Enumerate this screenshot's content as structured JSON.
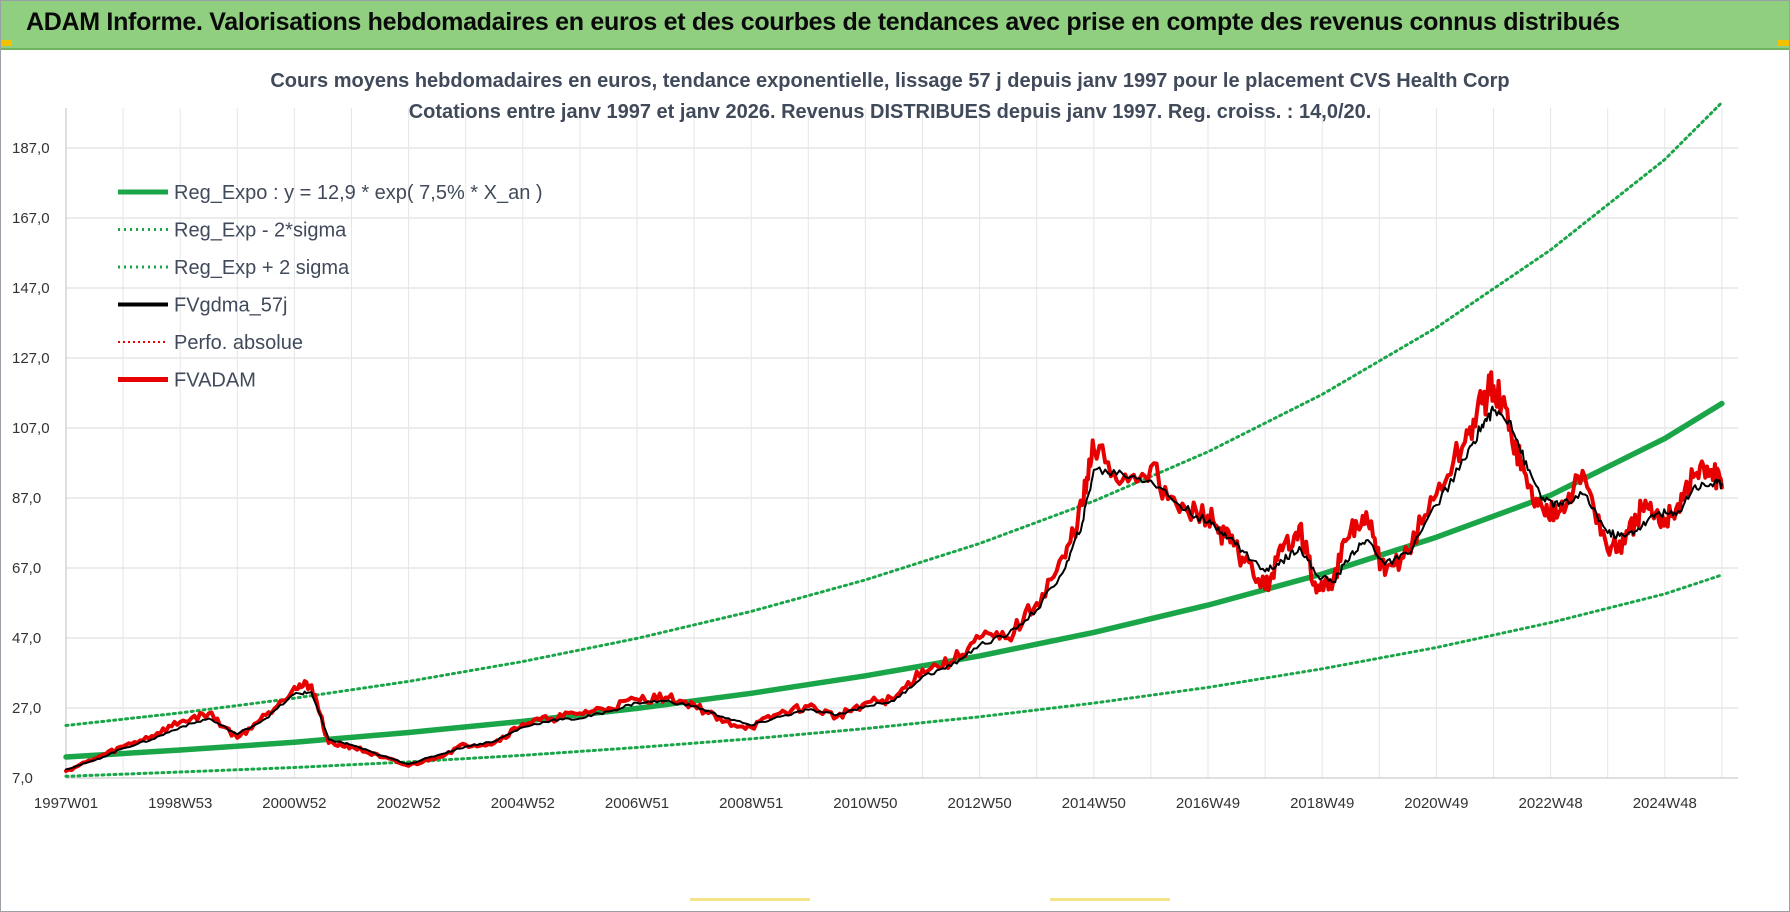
{
  "header": {
    "title": "ADAM Informe. Valorisations hebdomadaires en euros et des courbes de tendances avec prise en compte des revenus connus distribués"
  },
  "colors": {
    "header_bg": "#8fcf7f",
    "trend_green": "#1aa548",
    "price_red": "#e60000",
    "moving_avg_black": "#000000",
    "grid": "#d9d9d9"
  },
  "chart_data": {
    "type": "line",
    "title": "Cours moyens hebdomadaires en euros, tendance exponentielle, lissage 57 j depuis janv 1997 pour le placement CVS Health Corp",
    "subtitle": "Cotations entre janv 1997 et janv 2026. Revenus DISTRIBUES depuis janv 1997. Reg. croiss. : 14,0/20.",
    "xlabel": "",
    "ylabel": "",
    "x_range": [
      1997.0,
      2026.0
    ],
    "ylim": [
      7.0,
      187.0
    ],
    "y_ticks": [
      "7,0",
      "27,0",
      "47,0",
      "67,0",
      "87,0",
      "107,0",
      "127,0",
      "147,0",
      "167,0",
      "187,0"
    ],
    "x_ticks": [
      "1997W01",
      "1998W53",
      "2000W52",
      "2002W52",
      "2004W52",
      "2006W51",
      "2008W51",
      "2010W50",
      "2012W50",
      "2014W50",
      "2016W49",
      "2018W49",
      "2020W49",
      "2022W48",
      "2024W48"
    ],
    "x_tick_years": [
      1997.0,
      1999.0,
      2001.0,
      2003.0,
      2005.0,
      2007.0,
      2009.0,
      2011.0,
      2013.0,
      2015.0,
      2017.0,
      2019.0,
      2021.0,
      2023.0,
      2025.0
    ],
    "grid": true,
    "legend_position": "top-left",
    "legend": [
      {
        "name": "Reg_Expo : y = 12,9 * exp( 7,5% *  X_an )",
        "color": "#1aa548",
        "style": "solid-thick"
      },
      {
        "name": "Reg_Exp - 2*sigma",
        "color": "#1aa548",
        "style": "dotted"
      },
      {
        "name": "Reg_Exp + 2 sigma",
        "color": "#1aa548",
        "style": "dotted"
      },
      {
        "name": "FVgdma_57j",
        "color": "#000000",
        "style": "solid"
      },
      {
        "name": "Perfo. absolue",
        "color": "#e60000",
        "style": "dotted"
      },
      {
        "name": "FVADAM",
        "color": "#e60000",
        "style": "solid-thick"
      }
    ],
    "series": [
      {
        "name": "Reg_Expo : y = 12,9 * exp( 7,5% *  X_an )",
        "x": [
          1997,
          1999,
          2001,
          2003,
          2005,
          2007,
          2009,
          2011,
          2013,
          2015,
          2017,
          2019,
          2021,
          2023,
          2025,
          2026
        ],
        "values": [
          13.0,
          15.0,
          17.2,
          20.0,
          23.2,
          26.9,
          31.2,
          36.2,
          41.9,
          48.6,
          56.4,
          65.3,
          75.8,
          87.8,
          104.0,
          114.0
        ]
      },
      {
        "name": "Reg_Exp - 2*sigma",
        "x": [
          1997,
          1999,
          2001,
          2003,
          2005,
          2007,
          2009,
          2011,
          2013,
          2015,
          2017,
          2019,
          2021,
          2023,
          2025,
          2026
        ],
        "values": [
          7.5,
          8.7,
          10.0,
          11.6,
          13.5,
          15.7,
          18.2,
          21.1,
          24.5,
          28.4,
          32.9,
          38.2,
          44.3,
          51.4,
          59.6,
          65.0
        ]
      },
      {
        "name": "Reg_Exp + 2 sigma",
        "x": [
          1997,
          1999,
          2001,
          2003,
          2005,
          2007,
          2009,
          2011,
          2013,
          2015,
          2017,
          2019,
          2021,
          2023,
          2025,
          2026
        ],
        "values": [
          22.0,
          25.6,
          29.8,
          34.6,
          40.3,
          46.9,
          54.6,
          63.6,
          74.0,
          86.1,
          100.2,
          116.6,
          135.7,
          157.9,
          183.7,
          200.0
        ]
      },
      {
        "name": "FVgdma_57j",
        "x": [
          1997.0,
          1997.5,
          1998.0,
          1998.5,
          1999.0,
          1999.5,
          2000.0,
          2000.5,
          2001.0,
          2001.3,
          2001.6,
          2002.0,
          2002.5,
          2003.0,
          2003.5,
          2004.0,
          2004.5,
          2005.0,
          2005.5,
          2006.0,
          2006.5,
          2007.0,
          2007.5,
          2008.0,
          2008.5,
          2009.0,
          2009.5,
          2010.0,
          2010.5,
          2011.0,
          2011.5,
          2012.0,
          2012.5,
          2013.0,
          2013.5,
          2014.0,
          2014.5,
          2014.8,
          2015.0,
          2015.5,
          2016.0,
          2016.5,
          2017.0,
          2017.3,
          2017.6,
          2018.0,
          2018.3,
          2018.6,
          2018.9,
          2019.2,
          2019.5,
          2019.8,
          2020.1,
          2020.5,
          2021.0,
          2021.5,
          2021.8,
          2022.0,
          2022.3,
          2022.6,
          2022.9,
          2023.2,
          2023.6,
          2024.0,
          2024.3,
          2024.6,
          2024.9,
          2025.2,
          2025.5,
          2025.8,
          2026.0
        ],
        "values": [
          9.5,
          12.0,
          15.5,
          18.0,
          21.5,
          24.0,
          19.5,
          24.0,
          31.0,
          31.5,
          18.0,
          16.5,
          13.5,
          11.0,
          13.5,
          16.0,
          17.5,
          21.5,
          23.5,
          24.0,
          26.0,
          28.5,
          29.0,
          27.5,
          24.5,
          22.0,
          24.5,
          26.5,
          25.0,
          27.5,
          29.0,
          36.0,
          39.0,
          45.0,
          48.0,
          55.0,
          67.0,
          80.0,
          95.0,
          94.0,
          92.0,
          85.0,
          80.0,
          77.0,
          72.0,
          66.0,
          69.0,
          73.0,
          65.0,
          63.0,
          71.0,
          75.0,
          68.0,
          71.0,
          85.0,
          98.0,
          108.0,
          112.0,
          109.0,
          95.0,
          86.0,
          85.0,
          88.0,
          77.0,
          76.0,
          79.0,
          83.0,
          82.0,
          90.0,
          91.0,
          91.0
        ]
      },
      {
        "name": "FVADAM",
        "x": [
          1997.0,
          1997.5,
          1998.0,
          1998.5,
          1999.0,
          1999.5,
          2000.0,
          2000.5,
          2001.0,
          2001.3,
          2001.6,
          2002.0,
          2002.5,
          2003.0,
          2003.5,
          2004.0,
          2004.5,
          2005.0,
          2005.5,
          2006.0,
          2006.5,
          2007.0,
          2007.5,
          2008.0,
          2008.5,
          2009.0,
          2009.5,
          2010.0,
          2010.5,
          2011.0,
          2011.5,
          2012.0,
          2012.5,
          2013.0,
          2013.5,
          2014.0,
          2014.5,
          2014.8,
          2015.0,
          2015.5,
          2016.0,
          2016.5,
          2017.0,
          2017.3,
          2017.6,
          2018.0,
          2018.3,
          2018.6,
          2018.9,
          2019.2,
          2019.5,
          2019.8,
          2020.1,
          2020.5,
          2021.0,
          2021.5,
          2021.8,
          2022.0,
          2022.3,
          2022.6,
          2022.9,
          2023.2,
          2023.6,
          2024.0,
          2024.3,
          2024.6,
          2024.9,
          2025.2,
          2025.5,
          2025.8,
          2026.0
        ],
        "values": [
          9.0,
          12.5,
          16.0,
          19.0,
          23.0,
          25.5,
          18.5,
          25.0,
          33.0,
          33.5,
          17.0,
          16.0,
          13.0,
          10.5,
          13.0,
          16.5,
          17.0,
          22.5,
          24.0,
          25.5,
          27.0,
          29.5,
          30.0,
          28.0,
          23.0,
          21.5,
          25.5,
          27.5,
          24.5,
          28.5,
          29.5,
          38.0,
          40.0,
          47.0,
          47.0,
          57.0,
          70.0,
          85.0,
          101.0,
          92.0,
          96.0,
          83.0,
          82.0,
          76.0,
          70.0,
          61.0,
          72.0,
          79.0,
          60.0,
          64.0,
          78.0,
          80.0,
          65.0,
          72.0,
          88.0,
          103.0,
          114.0,
          119.0,
          107.0,
          90.0,
          82.0,
          86.0,
          93.0,
          72.0,
          74.0,
          84.0,
          80.0,
          84.0,
          93.0,
          95.0,
          90.0
        ]
      }
    ]
  }
}
